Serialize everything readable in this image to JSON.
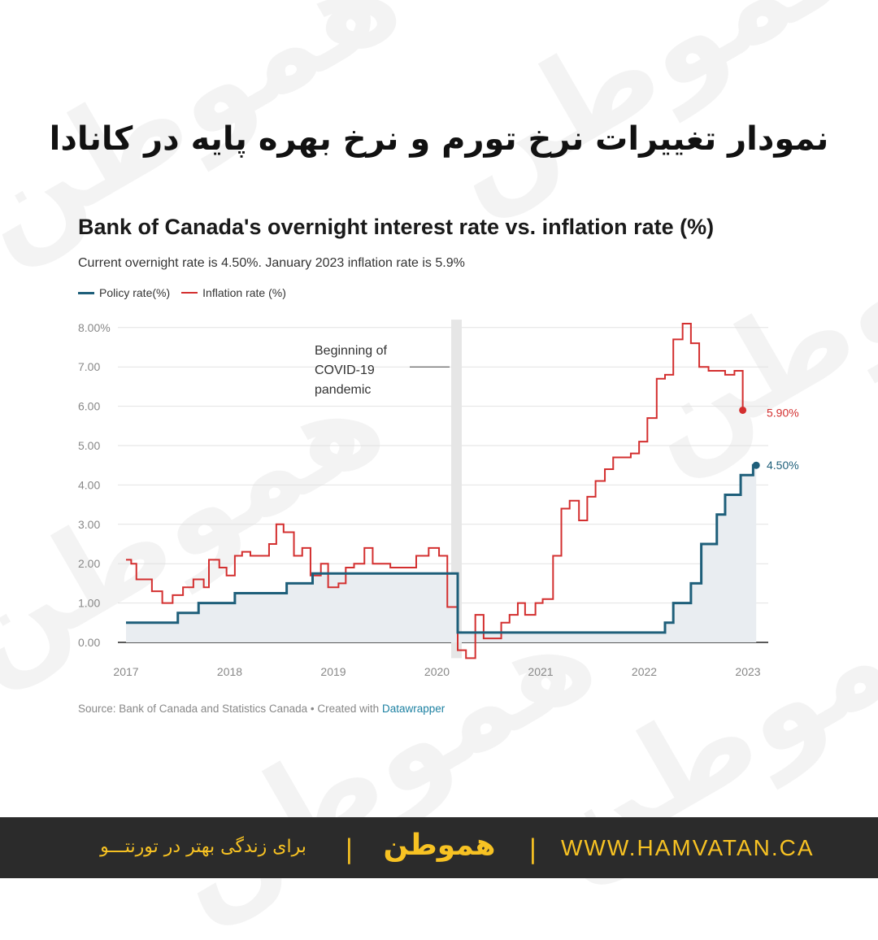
{
  "fa_title": "نمودار تغییرات نرخ تورم و نرخ بهره پایه در کانادا",
  "chart_data": {
    "type": "line",
    "title": "Bank of Canada's overnight interest rate vs. inflation rate (%)",
    "subtitle": "Current overnight rate is 4.50%. January 2023 inflation rate is 5.9%",
    "ylim": [
      -0.4,
      8.2
    ],
    "y_ticks": [
      "8.00%",
      "7.00",
      "6.00",
      "5.00",
      "4.00",
      "3.00",
      "2.00",
      "1.00",
      "0.00"
    ],
    "y_tick_values": [
      8,
      7,
      6,
      5,
      4,
      3,
      2,
      1,
      0
    ],
    "x_ticks": [
      "2017",
      "2018",
      "2019",
      "2020",
      "2021",
      "2022",
      "2023"
    ],
    "x_tick_values": [
      2017,
      2018,
      2019,
      2020,
      2021,
      2022,
      2023
    ],
    "annotation": {
      "text": [
        "Beginning of",
        "COVID-19",
        "pandemic"
      ],
      "x": 2020.2
    },
    "series": [
      {
        "name": "Policy rate(%)",
        "color": "#1e5f7a",
        "end_label": "4.50%",
        "step": true,
        "points": [
          [
            2017.0,
            0.5
          ],
          [
            2017.5,
            0.75
          ],
          [
            2017.7,
            1.0
          ],
          [
            2018.05,
            1.25
          ],
          [
            2018.55,
            1.5
          ],
          [
            2018.8,
            1.75
          ],
          [
            2020.2,
            0.25
          ],
          [
            2022.2,
            0.5
          ],
          [
            2022.28,
            1.0
          ],
          [
            2022.45,
            1.5
          ],
          [
            2022.55,
            2.5
          ],
          [
            2022.7,
            3.25
          ],
          [
            2022.78,
            3.75
          ],
          [
            2022.93,
            4.25
          ],
          [
            2023.05,
            4.5
          ]
        ],
        "end": 2023.08
      },
      {
        "name": "Inflation rate (%)",
        "color": "#d32f2f",
        "end_label": "5.90%",
        "step": true,
        "points": [
          [
            2017.0,
            2.1
          ],
          [
            2017.05,
            2.0
          ],
          [
            2017.1,
            1.6
          ],
          [
            2017.25,
            1.3
          ],
          [
            2017.35,
            1.0
          ],
          [
            2017.45,
            1.2
          ],
          [
            2017.55,
            1.4
          ],
          [
            2017.65,
            1.6
          ],
          [
            2017.75,
            1.4
          ],
          [
            2017.8,
            2.1
          ],
          [
            2017.9,
            1.9
          ],
          [
            2017.97,
            1.7
          ],
          [
            2018.05,
            2.2
          ],
          [
            2018.12,
            2.3
          ],
          [
            2018.2,
            2.2
          ],
          [
            2018.38,
            2.5
          ],
          [
            2018.45,
            3.0
          ],
          [
            2018.52,
            2.8
          ],
          [
            2018.62,
            2.2
          ],
          [
            2018.7,
            2.4
          ],
          [
            2018.78,
            1.7
          ],
          [
            2018.88,
            2.0
          ],
          [
            2018.95,
            1.4
          ],
          [
            2019.05,
            1.5
          ],
          [
            2019.12,
            1.9
          ],
          [
            2019.2,
            2.0
          ],
          [
            2019.3,
            2.4
          ],
          [
            2019.38,
            2.0
          ],
          [
            2019.55,
            1.9
          ],
          [
            2019.8,
            2.2
          ],
          [
            2019.92,
            2.4
          ],
          [
            2020.02,
            2.2
          ],
          [
            2020.1,
            0.9
          ],
          [
            2020.2,
            -0.2
          ],
          [
            2020.28,
            -0.4
          ],
          [
            2020.37,
            0.7
          ],
          [
            2020.45,
            0.1
          ],
          [
            2020.62,
            0.5
          ],
          [
            2020.7,
            0.7
          ],
          [
            2020.78,
            1.0
          ],
          [
            2020.85,
            0.7
          ],
          [
            2020.95,
            1.0
          ],
          [
            2021.02,
            1.1
          ],
          [
            2021.12,
            2.2
          ],
          [
            2021.2,
            3.4
          ],
          [
            2021.28,
            3.6
          ],
          [
            2021.37,
            3.1
          ],
          [
            2021.45,
            3.7
          ],
          [
            2021.53,
            4.1
          ],
          [
            2021.62,
            4.4
          ],
          [
            2021.7,
            4.7
          ],
          [
            2021.87,
            4.8
          ],
          [
            2021.95,
            5.1
          ],
          [
            2022.03,
            5.7
          ],
          [
            2022.12,
            6.7
          ],
          [
            2022.2,
            6.8
          ],
          [
            2022.28,
            7.7
          ],
          [
            2022.37,
            8.1
          ],
          [
            2022.45,
            7.6
          ],
          [
            2022.53,
            7.0
          ],
          [
            2022.62,
            6.9
          ],
          [
            2022.78,
            6.8
          ],
          [
            2022.87,
            6.9
          ],
          [
            2022.95,
            5.9
          ]
        ],
        "end": 2022.95
      }
    ]
  },
  "source": {
    "text": "Source: Bank of Canada and Statistics Canada • Created with ",
    "link": "Datawrapper"
  },
  "footer": {
    "website": "WWW.HAMVATAN.CA",
    "brand": "هموطن",
    "slogan": "برای زندگی بهتر در تورنتـــو",
    "separator": "|"
  },
  "colors": {
    "policy": "#1e5f7a",
    "inflation": "#d32f2f",
    "footer_bg": "#2b2b2b",
    "footer_accent": "#f7c223",
    "area_fill": "#e9edf1"
  }
}
